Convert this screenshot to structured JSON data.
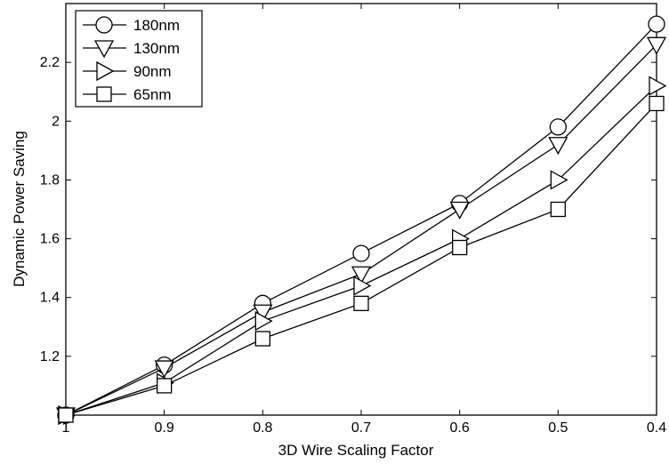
{
  "chart_data": {
    "type": "line",
    "xlabel": "3D Wire Scaling Factor",
    "ylabel": "Dynamic Power Saving",
    "xlim": [
      1.0,
      0.4
    ],
    "ylim": [
      1.0,
      2.4
    ],
    "x_reversed": true,
    "x": [
      1.0,
      0.9,
      0.8,
      0.7,
      0.6,
      0.5,
      0.4
    ],
    "x_tick_labels": [
      "1",
      "0.9",
      "0.8",
      "0.7",
      "0.6",
      "0.5",
      "0.4"
    ],
    "y_ticks": [
      1.2,
      1.4,
      1.6,
      1.8,
      2.0,
      2.2
    ],
    "y_tick_labels": [
      "1.2",
      "1.4",
      "1.6",
      "1.8",
      "2",
      "2.2"
    ],
    "grid": false,
    "legend_position": "top-left",
    "series": [
      {
        "name": "180nm",
        "marker": "circle",
        "values": [
          1.0,
          1.17,
          1.38,
          1.55,
          1.72,
          1.98,
          2.33
        ]
      },
      {
        "name": "130nm",
        "marker": "triangle-down",
        "values": [
          1.0,
          1.16,
          1.35,
          1.48,
          1.7,
          1.92,
          2.26
        ]
      },
      {
        "name": "90nm",
        "marker": "triangle-right",
        "values": [
          1.0,
          1.11,
          1.32,
          1.44,
          1.6,
          1.8,
          2.12
        ]
      },
      {
        "name": "65nm",
        "marker": "square",
        "values": [
          1.0,
          1.1,
          1.26,
          1.38,
          1.57,
          1.7,
          2.06
        ]
      }
    ]
  }
}
